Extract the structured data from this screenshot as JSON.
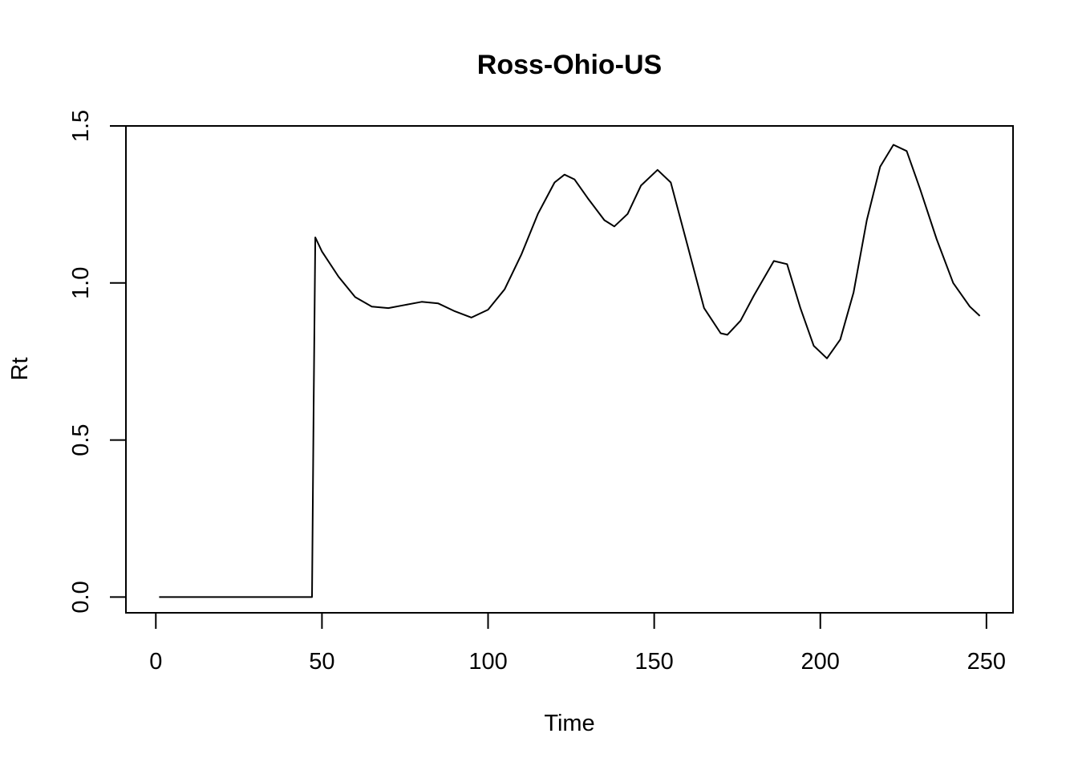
{
  "chart_data": {
    "type": "line",
    "title": "Ross-Ohio-US",
    "xlabel": "Time",
    "ylabel": "Rt",
    "xlim": [
      -9,
      258
    ],
    "ylim": [
      -0.05,
      1.5
    ],
    "xticks": [
      0,
      50,
      100,
      150,
      200,
      250
    ],
    "yticks": [
      0.0,
      0.5,
      1.0,
      1.5
    ],
    "xtick_labels": [
      "0",
      "50",
      "100",
      "150",
      "200",
      "250"
    ],
    "ytick_labels": [
      "0.0",
      "0.5",
      "1.0",
      "1.5"
    ],
    "grid": false,
    "legend": "none",
    "line_color": "#000000",
    "series": [
      {
        "x": [
          1,
          10,
          20,
          30,
          40,
          47,
          47.5,
          48,
          50,
          55,
          60,
          65,
          70,
          75,
          80,
          85,
          90,
          95,
          100,
          105,
          110,
          115,
          120,
          123,
          126,
          130,
          135,
          138,
          142,
          146,
          151,
          155,
          160,
          165,
          170,
          172,
          176,
          180,
          186,
          190,
          194,
          198,
          202,
          206,
          210,
          214,
          218,
          222,
          226,
          230,
          235,
          240,
          245,
          248
        ],
        "y": [
          0.0,
          0.0,
          0.0,
          0.0,
          0.0,
          0.0,
          0.6,
          1.145,
          1.1,
          1.02,
          0.955,
          0.925,
          0.92,
          0.93,
          0.94,
          0.935,
          0.91,
          0.89,
          0.915,
          0.98,
          1.09,
          1.22,
          1.32,
          1.345,
          1.33,
          1.27,
          1.2,
          1.18,
          1.22,
          1.31,
          1.36,
          1.32,
          1.12,
          0.92,
          0.84,
          0.835,
          0.88,
          0.96,
          1.07,
          1.06,
          0.92,
          0.8,
          0.76,
          0.82,
          0.97,
          1.2,
          1.37,
          1.44,
          1.42,
          1.3,
          1.14,
          1.0,
          0.925,
          0.895
        ]
      }
    ]
  }
}
